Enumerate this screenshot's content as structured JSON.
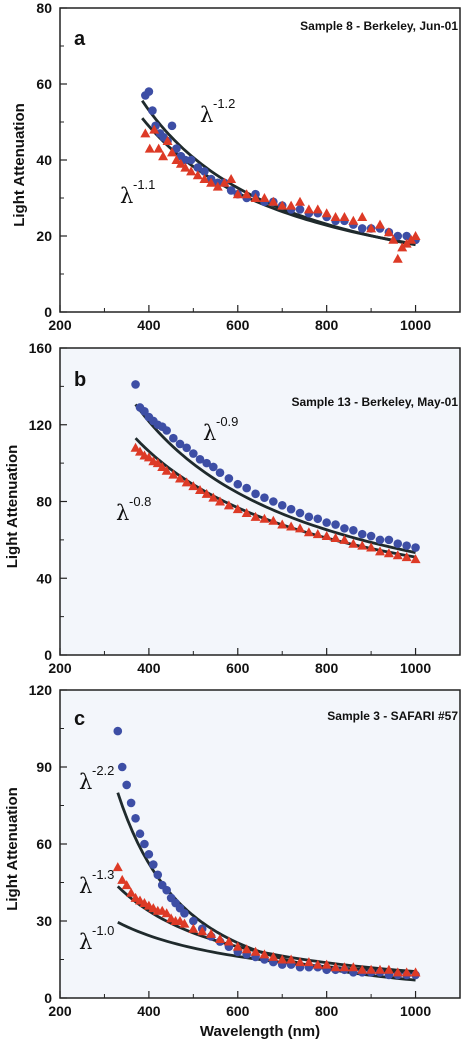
{
  "chart_data": [
    {
      "type": "scatter",
      "panel_letter": "a",
      "title": "Sample 8 - Berkeley, Jun-01",
      "xlabel": "",
      "ylabel": "Light Attenuation",
      "xlim": [
        200,
        1100
      ],
      "ylim": [
        0,
        80
      ],
      "xticks": [
        200,
        400,
        600,
        800,
        1000
      ],
      "yticks": [
        0,
        20,
        40,
        60,
        80
      ],
      "panel_bg": "#ffffff",
      "series": [
        {
          "name": "",
          "marker": "circle",
          "color": "#3d4ea5",
          "x": [
            392,
            400,
            408,
            415,
            425,
            433,
            442,
            452,
            462,
            472,
            482,
            495,
            510,
            525,
            540,
            555,
            570,
            585,
            600,
            620,
            640,
            660,
            680,
            700,
            720,
            740,
            760,
            780,
            800,
            820,
            840,
            860,
            880,
            900,
            920,
            940,
            960,
            980,
            1000
          ],
          "y": [
            57,
            58,
            53,
            49,
            47,
            46,
            45,
            49,
            43,
            41,
            40,
            40,
            38,
            37,
            35,
            34,
            34,
            32,
            31,
            30,
            31,
            29,
            29,
            28,
            27,
            27,
            26,
            26,
            25,
            24,
            24,
            23,
            22,
            22,
            22,
            21,
            20,
            20,
            19
          ]
        },
        {
          "name": "",
          "marker": "triangle",
          "color": "#dd3a26",
          "x": [
            392,
            402,
            412,
            422,
            432,
            442,
            452,
            462,
            472,
            482,
            495,
            510,
            525,
            540,
            555,
            570,
            585,
            600,
            620,
            640,
            660,
            680,
            700,
            720,
            740,
            760,
            780,
            800,
            820,
            840,
            860,
            880,
            900,
            920,
            940,
            950,
            960,
            970,
            980,
            990,
            1000
          ],
          "y": [
            47,
            43,
            48,
            43,
            41,
            45,
            42,
            40,
            39,
            38,
            37,
            36,
            35,
            34,
            33,
            34,
            35,
            31,
            31,
            30,
            30,
            29,
            28,
            28,
            29,
            27,
            27,
            26,
            25,
            25,
            24,
            25,
            22,
            23,
            21,
            19,
            14,
            17,
            18,
            19,
            20
          ]
        }
      ],
      "fits": [
        {
          "label_base": "λ",
          "exponent": "-1.2",
          "x_range": [
            385,
            1000
          ],
          "y_start": 55.6,
          "power": 1.2
        },
        {
          "label_base": "λ",
          "exponent": "-1.1",
          "x_range": [
            385,
            1000
          ],
          "y_start": 51.0,
          "power": 1.1
        }
      ]
    },
    {
      "type": "scatter",
      "panel_letter": "b",
      "title": "Sample 13 - Berkeley, May-01",
      "xlabel": "",
      "ylabel": "Light Attenuation",
      "xlim": [
        200,
        1100
      ],
      "ylim": [
        0,
        160
      ],
      "xticks": [
        200,
        400,
        600,
        800,
        1000
      ],
      "yticks": [
        0,
        40,
        80,
        120,
        160
      ],
      "panel_bg": "#f3f6fb",
      "series": [
        {
          "name": "",
          "marker": "circle",
          "color": "#3d4ea5",
          "x": [
            370,
            380,
            390,
            400,
            410,
            420,
            430,
            440,
            455,
            470,
            485,
            500,
            515,
            530,
            545,
            560,
            580,
            600,
            620,
            640,
            660,
            680,
            700,
            720,
            740,
            760,
            780,
            800,
            820,
            840,
            860,
            880,
            900,
            920,
            940,
            960,
            980,
            1000
          ],
          "y": [
            141,
            129,
            127,
            124,
            122,
            120,
            119,
            117,
            113,
            110,
            108,
            105,
            102,
            100,
            98,
            95,
            92,
            89,
            87,
            84,
            82,
            80,
            78,
            76,
            74,
            72,
            71,
            69,
            68,
            66,
            65,
            63,
            62,
            60,
            60,
            58,
            57,
            56
          ]
        },
        {
          "name": "",
          "marker": "triangle",
          "color": "#dd3a26",
          "x": [
            370,
            380,
            390,
            400,
            410,
            420,
            430,
            440,
            455,
            470,
            485,
            500,
            515,
            530,
            545,
            560,
            580,
            600,
            620,
            640,
            660,
            680,
            700,
            720,
            740,
            760,
            780,
            800,
            820,
            840,
            860,
            880,
            900,
            920,
            940,
            960,
            980,
            1000
          ],
          "y": [
            108,
            106,
            104,
            103,
            101,
            100,
            98,
            96,
            94,
            92,
            90,
            88,
            86,
            84,
            82,
            80,
            78,
            76,
            74,
            72,
            71,
            70,
            68,
            67,
            66,
            64,
            63,
            62,
            61,
            60,
            58,
            57,
            56,
            54,
            53,
            52,
            51,
            50
          ]
        }
      ],
      "fits": [
        {
          "label_base": "λ",
          "exponent": "-0.9",
          "x_range": [
            370,
            1000
          ],
          "y_start": 130.6,
          "power": 0.9
        },
        {
          "label_base": "λ",
          "exponent": "-0.8",
          "x_range": [
            370,
            1000
          ],
          "y_start": 113.0,
          "power": 0.8
        }
      ]
    },
    {
      "type": "scatter",
      "panel_letter": "c",
      "title": "Sample 3 - SAFARI #57",
      "xlabel": "Wavelength (nm)",
      "ylabel": "Light Attenuation",
      "xlim": [
        200,
        1100
      ],
      "ylim": [
        0,
        120
      ],
      "xticks": [
        200,
        400,
        600,
        800,
        1000
      ],
      "yticks": [
        0,
        30,
        60,
        90,
        120
      ],
      "panel_bg": "#f3f6fb",
      "series": [
        {
          "name": "",
          "marker": "circle",
          "color": "#3d4ea5",
          "x": [
            330,
            340,
            350,
            360,
            370,
            380,
            390,
            400,
            410,
            420,
            430,
            440,
            450,
            460,
            470,
            480,
            500,
            520,
            540,
            560,
            580,
            600,
            620,
            640,
            660,
            680,
            700,
            720,
            740,
            760,
            780,
            800,
            820,
            840,
            860,
            880,
            900,
            920,
            940,
            960,
            980,
            1000
          ],
          "y": [
            104,
            90,
            83,
            76,
            70,
            64,
            60,
            56,
            52,
            48,
            44,
            42,
            39,
            37,
            35,
            33,
            30,
            27,
            24,
            22,
            20,
            18,
            17,
            16,
            15,
            14,
            13,
            13,
            12,
            12,
            12,
            11,
            11,
            11,
            10,
            10,
            10,
            10,
            9,
            9,
            9,
            9
          ]
        },
        {
          "name": "",
          "marker": "triangle",
          "color": "#dd3a26",
          "x": [
            330,
            340,
            350,
            360,
            370,
            380,
            390,
            400,
            410,
            420,
            430,
            440,
            450,
            460,
            470,
            480,
            500,
            520,
            540,
            560,
            580,
            600,
            620,
            640,
            660,
            680,
            700,
            720,
            740,
            760,
            780,
            800,
            820,
            840,
            860,
            880,
            900,
            920,
            940,
            960,
            980,
            1000
          ],
          "y": [
            51,
            46,
            44,
            41,
            39,
            38,
            37,
            36,
            35,
            34,
            34,
            33,
            31,
            30,
            30,
            29,
            27,
            26,
            25,
            23,
            22,
            20,
            19,
            18,
            17,
            16,
            15,
            15,
            14,
            14,
            13,
            13,
            12,
            12,
            12,
            11,
            11,
            11,
            11,
            10,
            10,
            10
          ]
        }
      ],
      "fits": [
        {
          "label_base": "λ",
          "exponent": "-2.2",
          "x_range": [
            330,
            1000
          ],
          "y_start": 80.0,
          "power": 2.2
        },
        {
          "label_base": "λ",
          "exponent": "-1.3",
          "x_range": [
            330,
            1000
          ],
          "y_start": 43.5,
          "power": 1.3
        },
        {
          "label_base": "λ",
          "exponent": "-1.0",
          "x_range": [
            330,
            1000
          ],
          "y_start": 29.5,
          "power": 1.0
        }
      ]
    }
  ],
  "colors": {
    "circle_series": "#3d4ea5",
    "triangle_series": "#dd3a26",
    "fit_line": "#1f2a2c"
  }
}
